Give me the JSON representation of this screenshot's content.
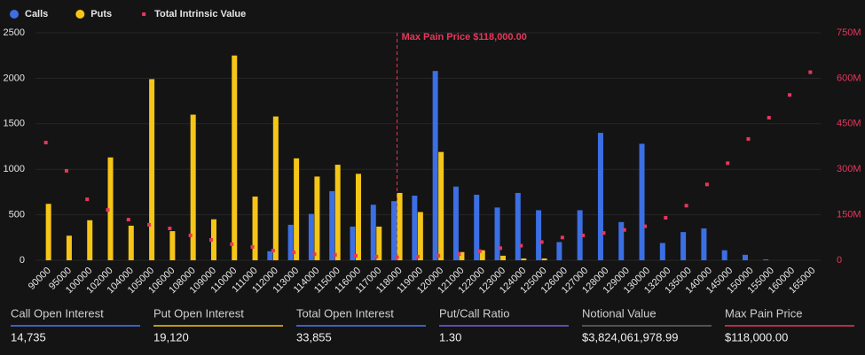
{
  "chart_data": {
    "type": "bar",
    "categories": [
      "90000",
      "95000",
      "100000",
      "102000",
      "104000",
      "105000",
      "106000",
      "108000",
      "109000",
      "110000",
      "111000",
      "112000",
      "113000",
      "114000",
      "115000",
      "116000",
      "117000",
      "118000",
      "119000",
      "120000",
      "121000",
      "122000",
      "123000",
      "124000",
      "125000",
      "126000",
      "127000",
      "128000",
      "129000",
      "130000",
      "132000",
      "135000",
      "140000",
      "145000",
      "150000",
      "155000",
      "160000",
      "165000"
    ],
    "series": [
      {
        "name": "Calls",
        "color": "#3b6fe3",
        "values": [
          0,
          0,
          0,
          0,
          0,
          0,
          0,
          0,
          0,
          0,
          0,
          100,
          390,
          510,
          760,
          370,
          610,
          650,
          710,
          2080,
          810,
          720,
          580,
          740,
          550,
          200,
          550,
          1400,
          420,
          1280,
          190,
          310,
          350,
          110,
          60,
          10,
          0,
          0
        ]
      },
      {
        "name": "Puts",
        "color": "#f5c518",
        "values": [
          620,
          270,
          440,
          1130,
          380,
          1990,
          320,
          1600,
          450,
          2250,
          700,
          1580,
          1120,
          920,
          1050,
          950,
          370,
          740,
          530,
          1190,
          90,
          110,
          50,
          20,
          20,
          0,
          0,
          0,
          0,
          0,
          0,
          0,
          0,
          0,
          0,
          0,
          0,
          0
        ]
      },
      {
        "name": "Total Intrinsic Value",
        "color": "#e8365d",
        "axis": "y2",
        "values": [
          388,
          295,
          201,
          166,
          134,
          117,
          105,
          82,
          67,
          53,
          44,
          32,
          26,
          20,
          18,
          15,
          12,
          10,
          12,
          15,
          20,
          30,
          40,
          48,
          60,
          75,
          82,
          90,
          100,
          112,
          140,
          180,
          250,
          320,
          400,
          470,
          545,
          620
        ]
      }
    ],
    "ylim": [
      0,
      2500
    ],
    "yticks": [
      0,
      500,
      1000,
      1500,
      2000,
      2500
    ],
    "y2lim": [
      0,
      750
    ],
    "y2ticks": [
      0,
      {
        "value": 150,
        "label": "150M"
      },
      {
        "value": 300,
        "label": "300M"
      },
      {
        "value": 450,
        "label": "450M"
      },
      {
        "value": 600,
        "label": "600M"
      },
      {
        "value": 750,
        "label": "750M"
      }
    ],
    "grid": true,
    "annotation": {
      "text": "Max Pain Price $118,000.00",
      "category": "118000",
      "color": "#e8365d"
    }
  },
  "stats": [
    {
      "label": "Call Open Interest",
      "value": "14,735",
      "color": "#4a7cf0"
    },
    {
      "label": "Put Open Interest",
      "value": "19,120",
      "color": "#f5c518"
    },
    {
      "label": "Total Open Interest",
      "value": "33,855",
      "color": "#4a7cf0"
    },
    {
      "label": "Put/Call Ratio",
      "value": "1.30",
      "color": "#7b5ce0"
    },
    {
      "label": "Notional Value",
      "value": "$3,824,061,978.99",
      "color": "#666666"
    },
    {
      "label": "Max Pain Price",
      "value": "$118,000.00",
      "color": "#e8365d"
    }
  ]
}
